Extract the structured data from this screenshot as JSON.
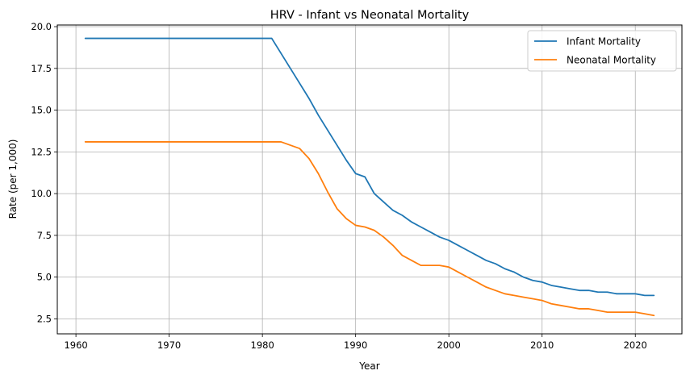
{
  "chart_data": {
    "type": "line",
    "title": "HRV - Infant vs Neonatal Mortality",
    "xlabel": "Year",
    "ylabel": "Rate (per 1,000)",
    "xlim": [
      1958,
      2025
    ],
    "ylim": [
      1.6,
      20.1
    ],
    "xticks": [
      1960,
      1970,
      1980,
      1990,
      2000,
      2010,
      2020
    ],
    "yticks": [
      2.5,
      5.0,
      7.5,
      10.0,
      12.5,
      15.0,
      17.5,
      20.0
    ],
    "ytick_labels": [
      "2.5",
      "5.0",
      "7.5",
      "10.0",
      "12.5",
      "15.0",
      "17.5",
      "20.0"
    ],
    "grid": true,
    "legend": "top-right",
    "x": [
      1961,
      1962,
      1963,
      1964,
      1965,
      1966,
      1967,
      1968,
      1969,
      1970,
      1971,
      1972,
      1973,
      1974,
      1975,
      1976,
      1977,
      1978,
      1979,
      1980,
      1981,
      1982,
      1983,
      1984,
      1985,
      1986,
      1987,
      1988,
      1989,
      1990,
      1991,
      1992,
      1993,
      1994,
      1995,
      1996,
      1997,
      1998,
      1999,
      2000,
      2001,
      2002,
      2003,
      2004,
      2005,
      2006,
      2007,
      2008,
      2009,
      2010,
      2011,
      2012,
      2013,
      2014,
      2015,
      2016,
      2017,
      2018,
      2019,
      2020,
      2021,
      2022
    ],
    "series": [
      {
        "name": "Infant Mortality",
        "color": "#1f77b4",
        "values": [
          19.3,
          19.3,
          19.3,
          19.3,
          19.3,
          19.3,
          19.3,
          19.3,
          19.3,
          19.3,
          19.3,
          19.3,
          19.3,
          19.3,
          19.3,
          19.3,
          19.3,
          19.3,
          19.3,
          19.3,
          19.3,
          18.4,
          17.5,
          16.6,
          15.7,
          14.7,
          13.8,
          12.9,
          12.0,
          11.2,
          11.0,
          10.0,
          9.5,
          9.0,
          8.7,
          8.3,
          8.0,
          7.7,
          7.4,
          7.2,
          6.9,
          6.6,
          6.3,
          6.0,
          5.8,
          5.5,
          5.3,
          5.0,
          4.8,
          4.7,
          4.5,
          4.4,
          4.3,
          4.2,
          4.2,
          4.1,
          4.1,
          4.0,
          4.0,
          4.0,
          3.9,
          3.9
        ]
      },
      {
        "name": "Neonatal Mortality",
        "color": "#ff7f0e",
        "values": [
          13.1,
          13.1,
          13.1,
          13.1,
          13.1,
          13.1,
          13.1,
          13.1,
          13.1,
          13.1,
          13.1,
          13.1,
          13.1,
          13.1,
          13.1,
          13.1,
          13.1,
          13.1,
          13.1,
          13.1,
          13.1,
          13.1,
          12.9,
          12.7,
          12.1,
          11.2,
          10.1,
          9.1,
          8.5,
          8.1,
          8.0,
          7.8,
          7.4,
          6.9,
          6.3,
          6.0,
          5.7,
          5.7,
          5.7,
          5.6,
          5.3,
          5.0,
          4.7,
          4.4,
          4.2,
          4.0,
          3.9,
          3.8,
          3.7,
          3.6,
          3.4,
          3.3,
          3.2,
          3.1,
          3.1,
          3.0,
          2.9,
          2.9,
          2.9,
          2.9,
          2.8,
          2.7
        ]
      }
    ]
  }
}
